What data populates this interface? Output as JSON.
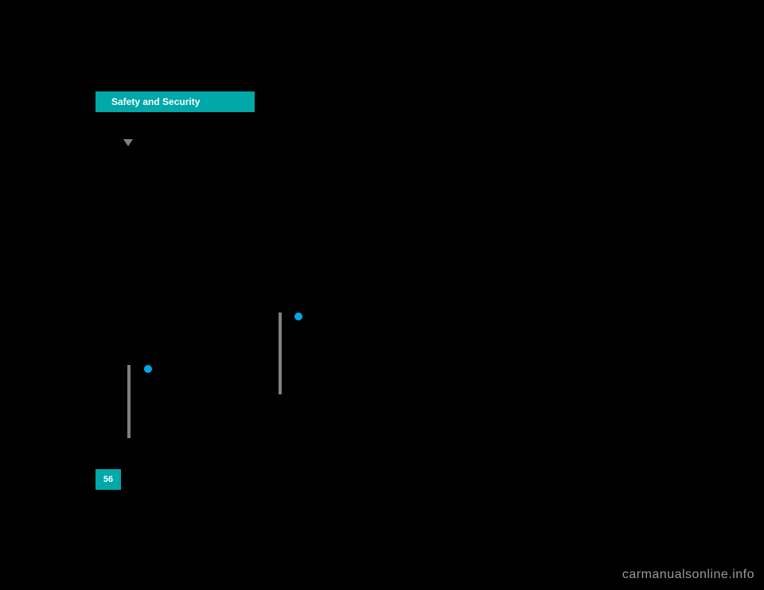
{
  "header": {
    "tab_label": "Safety and Security"
  },
  "page": {
    "number": "56"
  },
  "watermark": {
    "text": "carmanualsonline.info"
  },
  "colors": {
    "accent": "#00a8a8",
    "bullet": "#00a8e8",
    "bar": "#808080",
    "background": "#000000",
    "text_light": "#ffffff",
    "watermark": "#9a9a9a"
  }
}
